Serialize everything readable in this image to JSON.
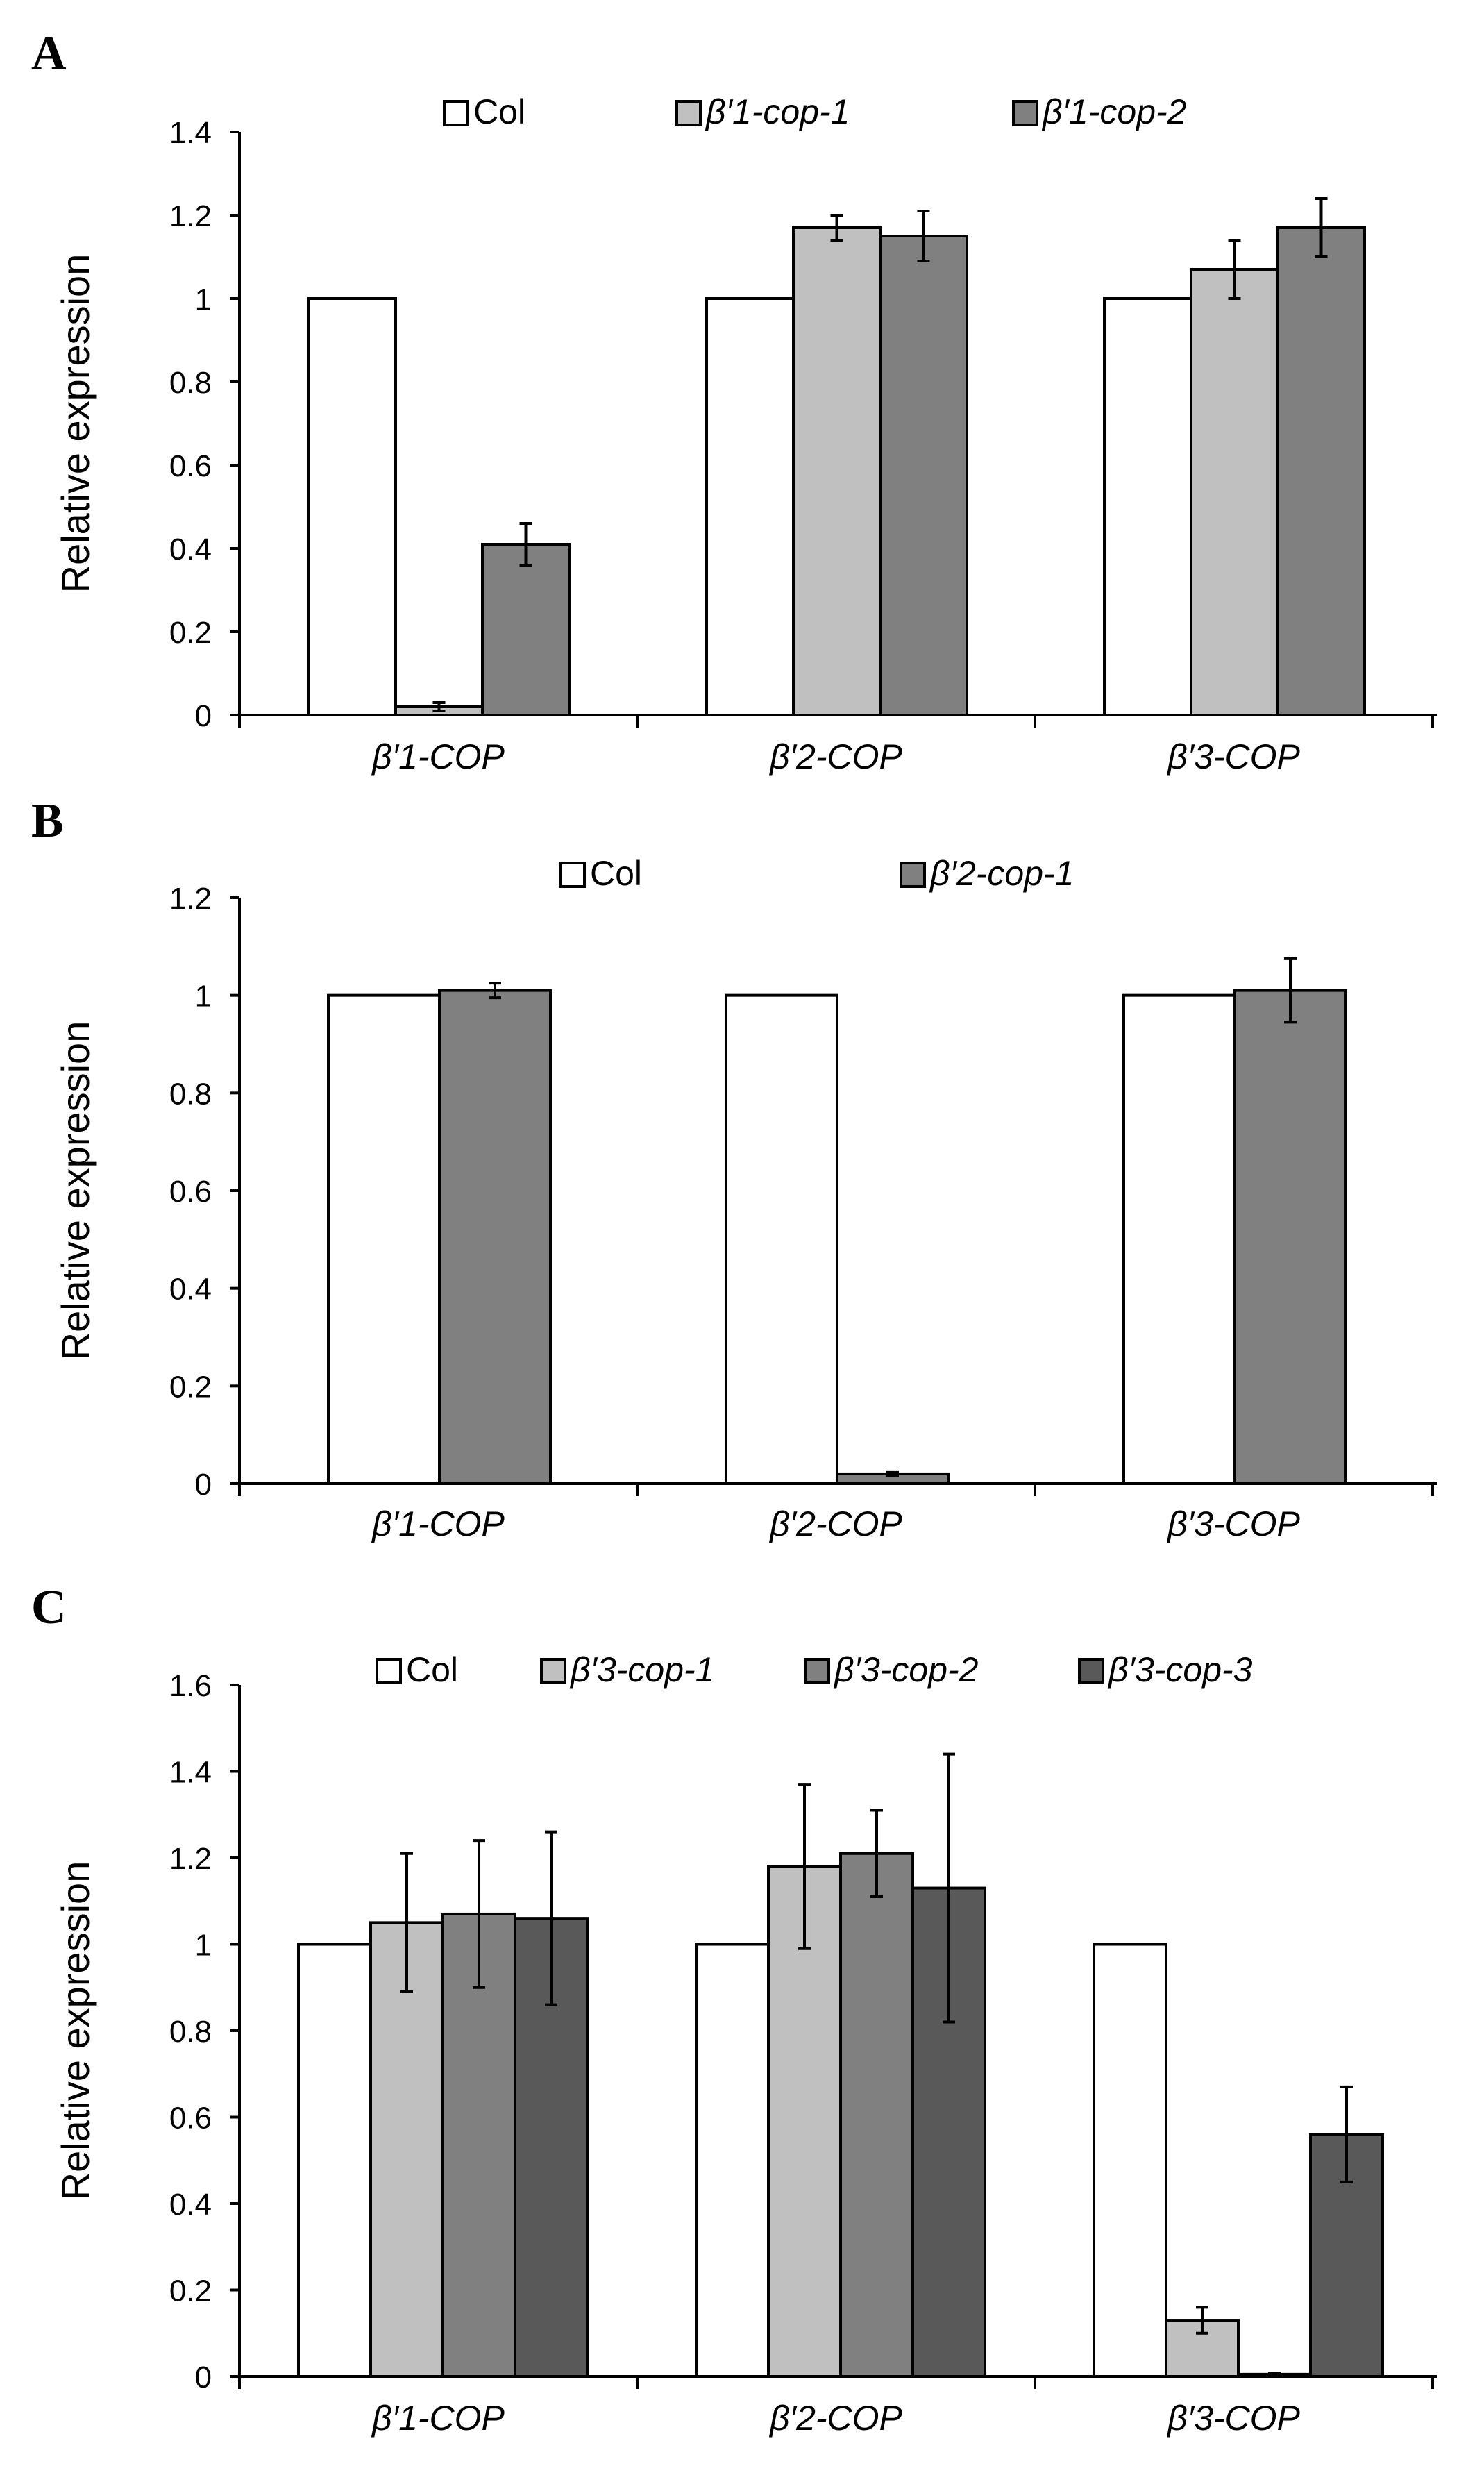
{
  "figure": {
    "panels": [
      {
        "letter": "A"
      },
      {
        "letter": "B"
      },
      {
        "letter": "C"
      }
    ]
  },
  "colors": {
    "Col": "#ffffff",
    "mutant_1": "#c0c0c0",
    "mutant_2": "#808080",
    "mutant_3": "#595959",
    "axis": "#000000"
  },
  "chart_data": [
    {
      "panel": "A",
      "type": "bar",
      "ylabel": "Relative expression",
      "ylim": [
        0,
        1.4
      ],
      "yticks": [
        0,
        0.2,
        0.4,
        0.6,
        0.8,
        1,
        1.2,
        1.4
      ],
      "categories": [
        "β′1-COP",
        "β′2-COP",
        "β′3-COP"
      ],
      "series": [
        {
          "name": "Col",
          "italic": false,
          "color": "#ffffff",
          "values": [
            1,
            1,
            1
          ],
          "errors": [
            0,
            0,
            0
          ]
        },
        {
          "name": "β′1-cop-1",
          "italic": true,
          "color": "#c0c0c0",
          "values": [
            0.02,
            1.17,
            1.07
          ],
          "errors": [
            0.01,
            0.03,
            0.07
          ]
        },
        {
          "name": "β′1-cop-2",
          "italic": true,
          "color": "#808080",
          "values": [
            0.41,
            1.15,
            1.17
          ],
          "errors": [
            0.05,
            0.06,
            0.07
          ]
        }
      ]
    },
    {
      "panel": "B",
      "type": "bar",
      "ylabel": "Relative expression",
      "ylim": [
        0,
        1.2
      ],
      "yticks": [
        0,
        0.2,
        0.4,
        0.6,
        0.8,
        1,
        1.2
      ],
      "categories": [
        "β′1-COP",
        "β′2-COP",
        "β′3-COP"
      ],
      "series": [
        {
          "name": "Col",
          "italic": false,
          "color": "#ffffff",
          "values": [
            1,
            1,
            1
          ],
          "errors": [
            0,
            0,
            0
          ]
        },
        {
          "name": "β′2-cop-1",
          "italic": true,
          "color": "#808080",
          "values": [
            1.01,
            0.02,
            1.01
          ],
          "errors": [
            0.015,
            0.003,
            0.065
          ]
        }
      ]
    },
    {
      "panel": "C",
      "type": "bar",
      "ylabel": "Relative expression",
      "ylim": [
        0,
        1.6
      ],
      "yticks": [
        0,
        0.2,
        0.4,
        0.6,
        0.8,
        1,
        1.2,
        1.4,
        1.6
      ],
      "categories": [
        "β′1-COP",
        "β′2-COP",
        "β′3-COP"
      ],
      "series": [
        {
          "name": "Col",
          "italic": false,
          "color": "#ffffff",
          "values": [
            1,
            1,
            1
          ],
          "errors": [
            0,
            0,
            0
          ]
        },
        {
          "name": "β′3-cop-1",
          "italic": true,
          "color": "#c0c0c0",
          "values": [
            1.05,
            1.18,
            0.13
          ],
          "errors": [
            0.16,
            0.19,
            0.03
          ]
        },
        {
          "name": "β′3-cop-2",
          "italic": true,
          "color": "#808080",
          "values": [
            1.07,
            1.21,
            0.005
          ],
          "errors": [
            0.17,
            0.1,
            0.002
          ]
        },
        {
          "name": "β′3-cop-3",
          "italic": true,
          "color": "#595959",
          "values": [
            1.06,
            1.13,
            0.56
          ],
          "errors": [
            0.2,
            0.31,
            0.11
          ]
        }
      ]
    }
  ]
}
